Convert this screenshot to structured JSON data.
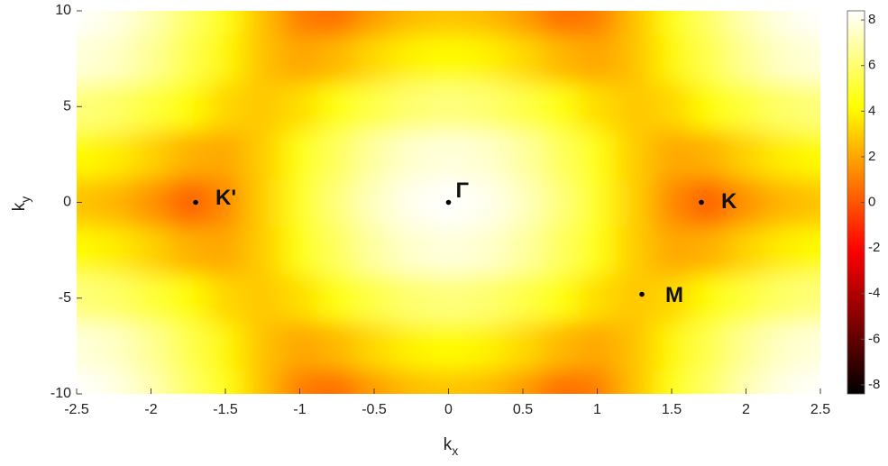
{
  "chart_data": {
    "type": "heatmap",
    "xlabel": "k",
    "xlabel_sub": "x",
    "ylabel": "k",
    "ylabel_sub": "y",
    "x": [
      -2.5,
      -2.25,
      -2,
      -1.75,
      -1.5,
      -1.25,
      -1,
      -0.75,
      -0.5,
      -0.25,
      0,
      0.25,
      0.5,
      0.75,
      1,
      1.25,
      1.5,
      1.75,
      2,
      2.25,
      2.5
    ],
    "y": [
      -10,
      -7.5,
      -5,
      -2.5,
      0,
      2.5,
      5,
      7.5,
      10
    ],
    "z": [
      [
        8.39,
        8.01,
        7.15,
        5.87,
        4.31,
        2.61,
        0.94,
        0.59,
        1.77,
        2.54,
        2.8,
        2.54,
        1.77,
        0.59,
        0.94,
        2.61,
        4.31,
        5.87,
        7.15,
        8.01,
        8.39
      ],
      [
        7.82,
        7.46,
        6.63,
        5.43,
        4.01,
        2.67,
        1.99,
        2.43,
        3.26,
        3.9,
        4.13,
        3.9,
        3.26,
        2.43,
        1.99,
        2.67,
        4.01,
        5.43,
        6.63,
        7.46,
        7.82
      ],
      [
        6.25,
        5.92,
        5.17,
        4.16,
        3.18,
        2.81,
        3.37,
        4.39,
        5.36,
        6.03,
        6.26,
        6.03,
        5.36,
        4.39,
        3.37,
        2.81,
        3.18,
        4.16,
        5.17,
        5.92,
        6.25
      ],
      [
        4.12,
        3.79,
        3.09,
        2.26,
        2.03,
        2.94,
        4.33,
        5.72,
        6.85,
        7.58,
        7.83,
        7.58,
        6.85,
        5.72,
        4.33,
        2.94,
        2.03,
        2.26,
        3.09,
        3.79,
        4.12
      ],
      [
        2.79,
        2.41,
        1.55,
        0.28,
        1.28,
        2.99,
        4.67,
        6.18,
        7.37,
        8.14,
        8.4,
        8.14,
        7.37,
        6.18,
        4.67,
        2.99,
        1.28,
        0.28,
        1.55,
        2.41,
        2.79
      ],
      [
        4.12,
        3.79,
        3.09,
        2.26,
        2.03,
        2.94,
        4.33,
        5.72,
        6.85,
        7.58,
        7.83,
        7.58,
        6.85,
        5.72,
        4.33,
        2.94,
        2.03,
        2.26,
        3.09,
        3.79,
        4.12
      ],
      [
        6.25,
        5.92,
        5.17,
        4.16,
        3.18,
        2.81,
        3.37,
        4.39,
        5.36,
        6.03,
        6.26,
        6.03,
        5.36,
        4.39,
        3.37,
        2.81,
        3.18,
        4.16,
        5.17,
        5.92,
        6.25
      ],
      [
        7.82,
        7.46,
        6.63,
        5.43,
        4.01,
        2.67,
        1.99,
        2.43,
        3.26,
        3.9,
        4.13,
        3.9,
        3.26,
        2.43,
        1.99,
        2.67,
        4.01,
        5.43,
        6.63,
        7.46,
        7.82
      ],
      [
        8.39,
        8.01,
        7.15,
        5.87,
        4.31,
        2.61,
        0.94,
        0.59,
        1.77,
        2.54,
        2.8,
        2.54,
        1.77,
        0.59,
        0.94,
        2.61,
        4.31,
        5.87,
        7.15,
        8.01,
        8.39
      ]
    ],
    "xlim": [
      -2.5,
      2.5
    ],
    "xticks": [
      -2.5,
      -2,
      -1.5,
      -1,
      -0.5,
      0,
      0.5,
      1,
      1.5,
      2,
      2.5
    ],
    "ylim": [
      -10,
      10
    ],
    "yticks": [
      -10,
      -5,
      0,
      5,
      10
    ],
    "clim": [
      -8.4,
      8.4
    ],
    "cticks": [
      -8,
      -6,
      -4,
      -2,
      0,
      2,
      4,
      6,
      8
    ],
    "colormap": [
      "#000000",
      "#ff0000",
      "#ffff00",
      "#ffffff"
    ],
    "colormap_stops": [
      0,
      0.375,
      0.75,
      1
    ],
    "points": [
      {
        "label": "K'",
        "x": -1.7,
        "y": 0
      },
      {
        "label": "Γ",
        "x": 0,
        "y": 0
      },
      {
        "label": "K",
        "x": 1.7,
        "y": 0
      },
      {
        "label": "M",
        "x": 1.3,
        "y": -4.8
      }
    ]
  }
}
